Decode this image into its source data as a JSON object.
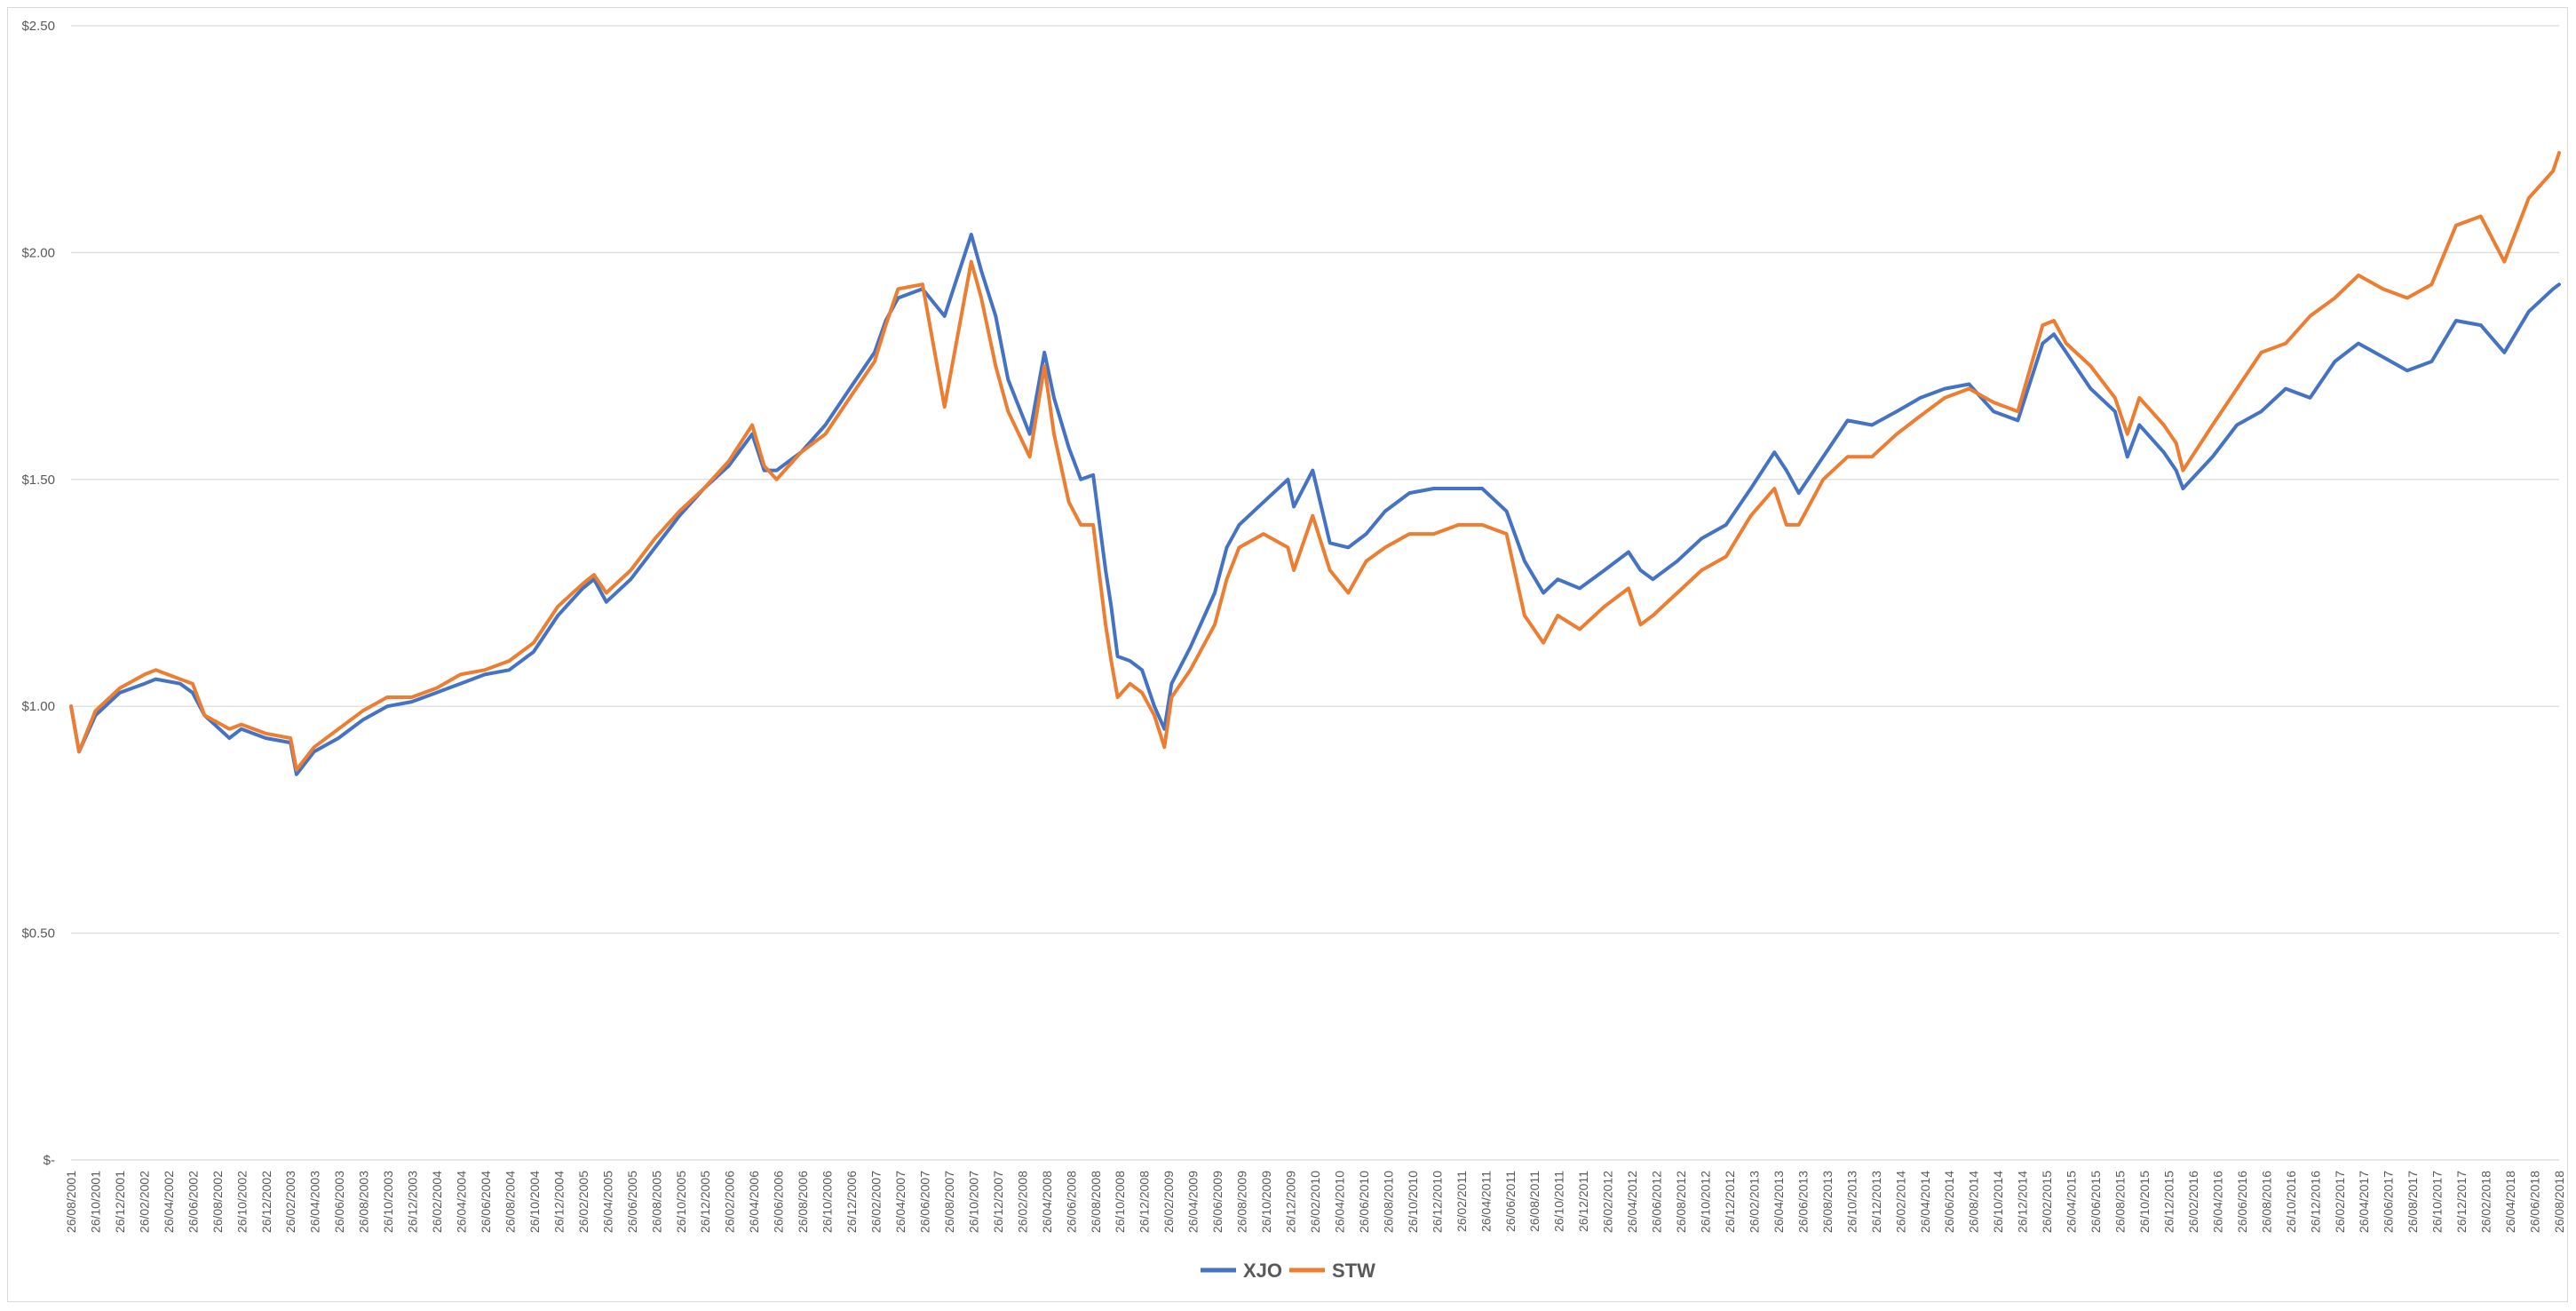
{
  "chart_data": {
    "type": "line",
    "title": "",
    "xlabel": "",
    "ylabel": "",
    "ylim": [
      0,
      2.5
    ],
    "y_ticks": [
      {
        "value": 0,
        "label": "$-"
      },
      {
        "value": 0.5,
        "label": "$0.50"
      },
      {
        "value": 1.0,
        "label": "$1.00"
      },
      {
        "value": 1.5,
        "label": "$1.50"
      },
      {
        "value": 2.0,
        "label": "$2.00"
      },
      {
        "value": 2.5,
        "label": "$2.50"
      }
    ],
    "grid": "horizontal",
    "legend_position": "bottom-center",
    "x_tick_labels": [
      "26/08/2001",
      "26/10/2001",
      "26/12/2001",
      "26/02/2002",
      "26/04/2002",
      "26/06/2002",
      "26/08/2002",
      "26/10/2002",
      "26/12/2002",
      "26/02/2003",
      "26/04/2003",
      "26/06/2003",
      "26/08/2003",
      "26/10/2003",
      "26/12/2003",
      "26/02/2004",
      "26/04/2004",
      "26/06/2004",
      "26/08/2004",
      "26/10/2004",
      "26/12/2004",
      "26/02/2005",
      "26/04/2005",
      "26/06/2005",
      "26/08/2005",
      "26/10/2005",
      "26/12/2005",
      "26/02/2006",
      "26/04/2006",
      "26/06/2006",
      "26/08/2006",
      "26/10/2006",
      "26/12/2006",
      "26/02/2007",
      "26/04/2007",
      "26/06/2007",
      "26/08/2007",
      "26/10/2007",
      "26/12/2007",
      "26/02/2008",
      "26/04/2008",
      "26/06/2008",
      "26/08/2008",
      "26/10/2008",
      "26/12/2008",
      "26/02/2009",
      "26/04/2009",
      "26/06/2009",
      "26/08/2009",
      "26/10/2009",
      "26/12/2009",
      "26/02/2010",
      "26/04/2010",
      "26/06/2010",
      "26/08/2010",
      "26/10/2010",
      "26/12/2010",
      "26/02/2011",
      "26/04/2011",
      "26/06/2011",
      "26/08/2011",
      "26/10/2011",
      "26/12/2011",
      "26/02/2012",
      "26/04/2012",
      "26/06/2012",
      "26/08/2012",
      "26/10/2012",
      "26/12/2012",
      "26/02/2013",
      "26/04/2013",
      "26/06/2013",
      "26/08/2013",
      "26/10/2013",
      "26/12/2013",
      "26/02/2014",
      "26/04/2014",
      "26/06/2014",
      "26/08/2014",
      "26/10/2014",
      "26/12/2014",
      "26/02/2015",
      "26/04/2015",
      "26/06/2015",
      "26/08/2015",
      "26/10/2015",
      "26/12/2015",
      "26/02/2016",
      "26/04/2016",
      "26/06/2016",
      "26/08/2016",
      "26/10/2016",
      "26/12/2016",
      "26/02/2017",
      "26/04/2017",
      "26/06/2017",
      "26/08/2017",
      "26/10/2017",
      "26/12/2017",
      "26/02/2018",
      "26/04/2018",
      "26/06/2018",
      "26/08/2018"
    ],
    "series": [
      {
        "name": "XJO",
        "color": "#4472c4",
        "x": [
          "2001-08-26",
          "2001-09-15",
          "2001-10-26",
          "2001-12-26",
          "2002-02-26",
          "2002-03-26",
          "2002-05-26",
          "2002-06-26",
          "2002-07-26",
          "2002-09-26",
          "2002-10-26",
          "2002-12-26",
          "2003-02-26",
          "2003-03-13",
          "2003-04-26",
          "2003-06-26",
          "2003-08-26",
          "2003-10-26",
          "2003-12-26",
          "2004-02-26",
          "2004-04-26",
          "2004-06-26",
          "2004-08-26",
          "2004-10-26",
          "2004-12-26",
          "2005-02-26",
          "2005-03-26",
          "2005-04-26",
          "2005-06-26",
          "2005-08-26",
          "2005-10-26",
          "2005-12-26",
          "2006-02-26",
          "2006-04-26",
          "2006-05-26",
          "2006-06-26",
          "2006-08-26",
          "2006-10-26",
          "2006-12-26",
          "2007-02-26",
          "2007-03-26",
          "2007-04-26",
          "2007-06-26",
          "2007-08-20",
          "2007-10-26",
          "2007-11-20",
          "2007-12-26",
          "2008-01-26",
          "2008-03-20",
          "2008-04-26",
          "2008-05-20",
          "2008-06-26",
          "2008-07-26",
          "2008-08-26",
          "2008-09-26",
          "2008-10-10",
          "2008-10-26",
          "2008-11-26",
          "2008-12-26",
          "2009-01-26",
          "2009-02-20",
          "2009-03-10",
          "2009-04-26",
          "2009-06-26",
          "2009-07-26",
          "2009-08-26",
          "2009-10-26",
          "2009-12-26",
          "2010-01-10",
          "2010-02-26",
          "2010-04-10",
          "2010-05-26",
          "2010-07-10",
          "2010-08-26",
          "2010-10-26",
          "2010-12-26",
          "2011-02-26",
          "2011-04-26",
          "2011-06-26",
          "2011-08-10",
          "2011-09-26",
          "2011-11-01",
          "2011-12-26",
          "2012-02-26",
          "2012-04-26",
          "2012-05-26",
          "2012-06-26",
          "2012-08-26",
          "2012-10-26",
          "2012-12-26",
          "2013-02-26",
          "2013-04-26",
          "2013-05-26",
          "2013-06-26",
          "2013-08-26",
          "2013-10-26",
          "2013-12-26",
          "2014-02-26",
          "2014-04-26",
          "2014-06-26",
          "2014-08-26",
          "2014-10-26",
          "2014-12-26",
          "2015-02-26",
          "2015-03-26",
          "2015-04-26",
          "2015-06-26",
          "2015-08-26",
          "2015-09-26",
          "2015-10-26",
          "2015-12-26",
          "2016-01-26",
          "2016-02-12",
          "2016-04-26",
          "2016-06-26",
          "2016-08-26",
          "2016-10-26",
          "2016-12-26",
          "2017-02-26",
          "2017-04-26",
          "2017-06-26",
          "2017-08-26",
          "2017-10-26",
          "2017-12-26",
          "2018-02-26",
          "2018-04-26",
          "2018-06-26",
          "2018-08-26",
          "2018-09-10"
        ],
        "values": [
          1.0,
          0.9,
          0.98,
          1.03,
          1.05,
          1.06,
          1.05,
          1.03,
          0.98,
          0.93,
          0.95,
          0.93,
          0.92,
          0.85,
          0.9,
          0.93,
          0.97,
          1.0,
          1.01,
          1.03,
          1.05,
          1.07,
          1.08,
          1.12,
          1.2,
          1.26,
          1.28,
          1.23,
          1.28,
          1.35,
          1.42,
          1.48,
          1.53,
          1.6,
          1.52,
          1.52,
          1.56,
          1.62,
          1.7,
          1.78,
          1.85,
          1.9,
          1.92,
          1.86,
          2.04,
          1.96,
          1.86,
          1.72,
          1.6,
          1.78,
          1.68,
          1.57,
          1.5,
          1.51,
          1.3,
          1.22,
          1.11,
          1.1,
          1.08,
          1.0,
          0.95,
          1.05,
          1.13,
          1.25,
          1.35,
          1.4,
          1.45,
          1.5,
          1.44,
          1.52,
          1.36,
          1.35,
          1.38,
          1.43,
          1.47,
          1.48,
          1.48,
          1.48,
          1.43,
          1.32,
          1.25,
          1.28,
          1.26,
          1.3,
          1.34,
          1.3,
          1.28,
          1.32,
          1.37,
          1.4,
          1.48,
          1.56,
          1.52,
          1.47,
          1.55,
          1.63,
          1.62,
          1.65,
          1.68,
          1.7,
          1.71,
          1.65,
          1.63,
          1.8,
          1.82,
          1.78,
          1.7,
          1.65,
          1.55,
          1.62,
          1.56,
          1.52,
          1.48,
          1.55,
          1.62,
          1.65,
          1.7,
          1.68,
          1.76,
          1.8,
          1.77,
          1.74,
          1.76,
          1.85,
          1.84,
          1.78,
          1.87,
          1.92,
          1.93
        ]
      },
      {
        "name": "STW",
        "color": "#ed7d31",
        "x": [
          "2001-08-26",
          "2001-09-15",
          "2001-10-26",
          "2001-12-26",
          "2002-02-26",
          "2002-03-26",
          "2002-05-26",
          "2002-06-26",
          "2002-07-26",
          "2002-09-26",
          "2002-10-26",
          "2002-12-26",
          "2003-02-26",
          "2003-03-13",
          "2003-04-26",
          "2003-06-26",
          "2003-08-26",
          "2003-10-26",
          "2003-12-26",
          "2004-02-26",
          "2004-04-26",
          "2004-06-26",
          "2004-08-26",
          "2004-10-26",
          "2004-12-26",
          "2005-02-26",
          "2005-03-26",
          "2005-04-26",
          "2005-06-26",
          "2005-08-26",
          "2005-10-26",
          "2005-12-26",
          "2006-02-26",
          "2006-04-26",
          "2006-05-26",
          "2006-06-26",
          "2006-08-26",
          "2006-10-26",
          "2006-12-26",
          "2007-02-26",
          "2007-03-26",
          "2007-04-26",
          "2007-06-26",
          "2007-08-20",
          "2007-10-26",
          "2007-11-20",
          "2007-12-26",
          "2008-01-26",
          "2008-03-20",
          "2008-04-26",
          "2008-05-20",
          "2008-06-26",
          "2008-07-26",
          "2008-08-26",
          "2008-09-26",
          "2008-10-10",
          "2008-10-26",
          "2008-11-26",
          "2008-12-26",
          "2009-01-26",
          "2009-02-20",
          "2009-03-10",
          "2009-04-26",
          "2009-06-26",
          "2009-07-26",
          "2009-08-26",
          "2009-10-26",
          "2009-12-26",
          "2010-01-10",
          "2010-02-26",
          "2010-04-10",
          "2010-05-26",
          "2010-07-10",
          "2010-08-26",
          "2010-10-26",
          "2010-12-26",
          "2011-02-26",
          "2011-04-26",
          "2011-06-26",
          "2011-08-10",
          "2011-09-26",
          "2011-11-01",
          "2011-12-26",
          "2012-02-26",
          "2012-04-26",
          "2012-05-26",
          "2012-06-26",
          "2012-08-26",
          "2012-10-26",
          "2012-12-26",
          "2013-02-26",
          "2013-04-26",
          "2013-05-26",
          "2013-06-26",
          "2013-08-26",
          "2013-10-26",
          "2013-12-26",
          "2014-02-26",
          "2014-04-26",
          "2014-06-26",
          "2014-08-26",
          "2014-10-26",
          "2014-12-26",
          "2015-02-26",
          "2015-03-26",
          "2015-04-26",
          "2015-06-26",
          "2015-08-26",
          "2015-09-26",
          "2015-10-26",
          "2015-12-26",
          "2016-01-26",
          "2016-02-12",
          "2016-04-26",
          "2016-06-26",
          "2016-08-26",
          "2016-10-26",
          "2016-12-26",
          "2017-02-26",
          "2017-04-26",
          "2017-06-26",
          "2017-08-26",
          "2017-10-26",
          "2017-12-26",
          "2018-02-26",
          "2018-04-26",
          "2018-06-26",
          "2018-08-26",
          "2018-09-10"
        ],
        "values": [
          1.0,
          0.9,
          0.99,
          1.04,
          1.07,
          1.08,
          1.06,
          1.05,
          0.98,
          0.95,
          0.96,
          0.94,
          0.93,
          0.86,
          0.91,
          0.95,
          0.99,
          1.02,
          1.02,
          1.04,
          1.07,
          1.08,
          1.1,
          1.14,
          1.22,
          1.27,
          1.29,
          1.25,
          1.3,
          1.37,
          1.43,
          1.48,
          1.54,
          1.62,
          1.53,
          1.5,
          1.56,
          1.6,
          1.68,
          1.76,
          1.84,
          1.92,
          1.93,
          1.66,
          1.98,
          1.9,
          1.75,
          1.65,
          1.55,
          1.75,
          1.6,
          1.45,
          1.4,
          1.4,
          1.18,
          1.1,
          1.02,
          1.05,
          1.03,
          0.98,
          0.91,
          1.02,
          1.08,
          1.18,
          1.28,
          1.35,
          1.38,
          1.35,
          1.3,
          1.42,
          1.3,
          1.25,
          1.32,
          1.35,
          1.38,
          1.38,
          1.4,
          1.4,
          1.38,
          1.2,
          1.14,
          1.2,
          1.17,
          1.22,
          1.26,
          1.18,
          1.2,
          1.25,
          1.3,
          1.33,
          1.42,
          1.48,
          1.4,
          1.4,
          1.5,
          1.55,
          1.55,
          1.6,
          1.64,
          1.68,
          1.7,
          1.67,
          1.65,
          1.84,
          1.85,
          1.8,
          1.75,
          1.68,
          1.6,
          1.68,
          1.62,
          1.58,
          1.52,
          1.62,
          1.7,
          1.78,
          1.8,
          1.86,
          1.9,
          1.95,
          1.92,
          1.9,
          1.93,
          2.06,
          2.08,
          1.98,
          2.12,
          2.18,
          2.22
        ]
      }
    ]
  }
}
